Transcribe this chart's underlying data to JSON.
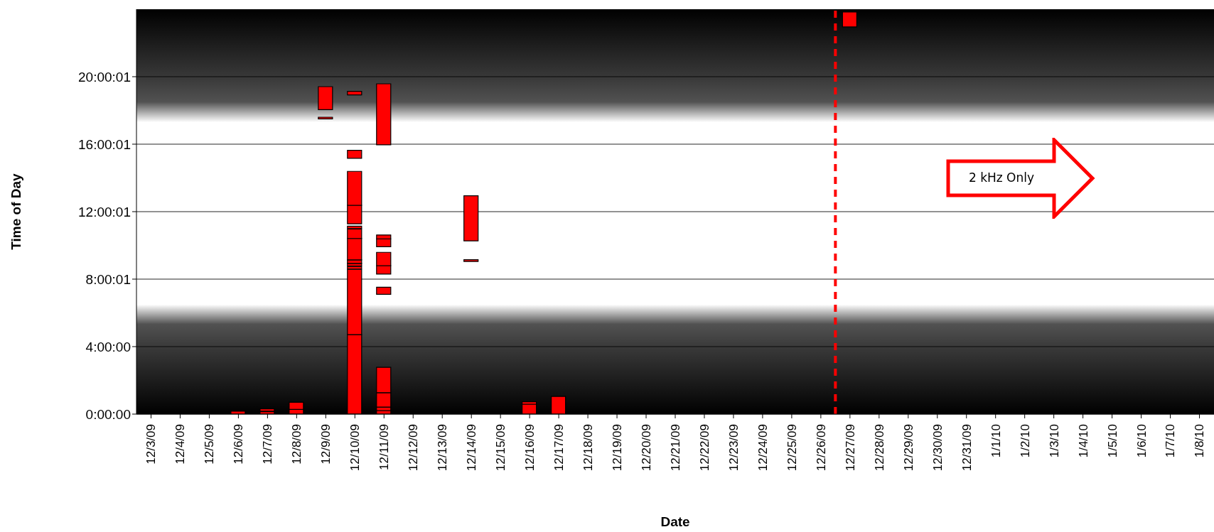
{
  "chart_data": {
    "type": "bar",
    "xlabel": "Date",
    "ylabel": "Time of Day",
    "categories": [
      "12/3/09",
      "12/4/09",
      "12/5/09",
      "12/6/09",
      "12/7/09",
      "12/8/09",
      "12/9/09",
      "12/10/09",
      "12/11/09",
      "12/12/09",
      "12/13/09",
      "12/14/09",
      "12/15/09",
      "12/16/09",
      "12/17/09",
      "12/18/09",
      "12/19/09",
      "12/20/09",
      "12/21/09",
      "12/22/09",
      "12/23/09",
      "12/24/09",
      "12/25/09",
      "12/26/09",
      "12/27/09",
      "12/28/09",
      "12/29/09",
      "12/30/09",
      "12/31/09",
      "1/1/10",
      "1/2/10",
      "1/3/10",
      "1/4/10",
      "1/5/10",
      "1/6/10",
      "1/7/10",
      "1/8/10"
    ],
    "series": [
      {
        "color": "#ff0000",
        "base": [
          null,
          null,
          null,
          0,
          0,
          0,
          17.5,
          0,
          0,
          null,
          null,
          9.05,
          null,
          0,
          0,
          null,
          null,
          null,
          null,
          null,
          null,
          null,
          null,
          null,
          22.95,
          null,
          null,
          null,
          null,
          null,
          null,
          null,
          null,
          null,
          null,
          null,
          null
        ],
        "values": [
          null,
          null,
          null,
          0.17,
          0.14,
          0.28,
          0.1,
          4.71,
          0.21,
          null,
          null,
          0.1,
          null,
          0.59,
          1.05,
          null,
          null,
          null,
          null,
          null,
          null,
          null,
          null,
          null,
          0.89,
          null,
          null,
          null,
          null,
          null,
          null,
          null,
          null,
          null,
          null,
          null,
          null
        ]
      },
      {
        "color": "#ff0000",
        "base": [
          null,
          null,
          null,
          null,
          0.17,
          0.28,
          18.05,
          4.71,
          0.21,
          null,
          null,
          10.27,
          null,
          0.59,
          null,
          null,
          null,
          null,
          null,
          null,
          null,
          null,
          null,
          null,
          null,
          null,
          null,
          null,
          null,
          null,
          null,
          null,
          null,
          null,
          null,
          null,
          null
        ],
        "values": [
          null,
          null,
          null,
          null,
          0.14,
          0.42,
          1.36,
          3.87,
          0.21,
          null,
          null,
          2.67,
          null,
          0.14,
          null,
          null,
          null,
          null,
          null,
          null,
          null,
          null,
          null,
          null,
          null,
          null,
          null,
          null,
          null,
          null,
          null,
          null,
          null,
          null,
          null,
          null,
          null
        ]
      },
      {
        "color": "#ff0000",
        "base": [
          null,
          null,
          null,
          null,
          null,
          null,
          null,
          8.6,
          0.42,
          null,
          null,
          null,
          null,
          null,
          null,
          null,
          null,
          null,
          null,
          null,
          null,
          null,
          null,
          null,
          null,
          null,
          null,
          null,
          null,
          null,
          null,
          null,
          null,
          null,
          null,
          null,
          null
        ],
        "values": [
          null,
          null,
          null,
          null,
          null,
          null,
          null,
          0.15,
          0.85,
          null,
          null,
          null,
          null,
          null,
          null,
          null,
          null,
          null,
          null,
          null,
          null,
          null,
          null,
          null,
          null,
          null,
          null,
          null,
          null,
          null,
          null,
          null,
          null,
          null,
          null,
          null,
          null
        ]
      },
      {
        "color": "#ff0000",
        "base": [
          null,
          null,
          null,
          null,
          null,
          null,
          null,
          8.78,
          1.27,
          null,
          null,
          null,
          null,
          null,
          null,
          null,
          null,
          null,
          null,
          null,
          null,
          null,
          null,
          null,
          null,
          null,
          null,
          null,
          null,
          null,
          null,
          null,
          null,
          null,
          null,
          null,
          null
        ],
        "values": [
          null,
          null,
          null,
          null,
          null,
          null,
          null,
          0.15,
          1.5,
          null,
          null,
          null,
          null,
          null,
          null,
          null,
          null,
          null,
          null,
          null,
          null,
          null,
          null,
          null,
          null,
          null,
          null,
          null,
          null,
          null,
          null,
          null,
          null,
          null,
          null,
          null,
          null
        ]
      },
      {
        "color": "#ff0000",
        "base": [
          null,
          null,
          null,
          null,
          null,
          null,
          null,
          8.93,
          7.1,
          null,
          null,
          null,
          null,
          null,
          null,
          null,
          null,
          null,
          null,
          null,
          null,
          null,
          null,
          null,
          null,
          null,
          null,
          null,
          null,
          null,
          null,
          null,
          null,
          null,
          null,
          null,
          null
        ],
        "values": [
          null,
          null,
          null,
          null,
          null,
          null,
          null,
          0.21,
          0.42,
          null,
          null,
          null,
          null,
          null,
          null,
          null,
          null,
          null,
          null,
          null,
          null,
          null,
          null,
          null,
          null,
          null,
          null,
          null,
          null,
          null,
          null,
          null,
          null,
          null,
          null,
          null,
          null
        ]
      },
      {
        "color": "#ff0000",
        "base": [
          null,
          null,
          null,
          null,
          null,
          null,
          null,
          9.14,
          8.3,
          null,
          null,
          null,
          null,
          null,
          null,
          null,
          null,
          null,
          null,
          null,
          null,
          null,
          null,
          null,
          null,
          null,
          null,
          null,
          null,
          null,
          null,
          null,
          null,
          null,
          null,
          null,
          null
        ],
        "values": [
          null,
          null,
          null,
          null,
          null,
          null,
          null,
          1.27,
          0.5,
          null,
          null,
          null,
          null,
          null,
          null,
          null,
          null,
          null,
          null,
          null,
          null,
          null,
          null,
          null,
          null,
          null,
          null,
          null,
          null,
          null,
          null,
          null,
          null,
          null,
          null,
          null,
          null
        ]
      },
      {
        "color": "#ff0000",
        "base": [
          null,
          null,
          null,
          null,
          null,
          null,
          null,
          10.41,
          8.8,
          null,
          null,
          null,
          null,
          null,
          null,
          null,
          null,
          null,
          null,
          null,
          null,
          null,
          null,
          null,
          null,
          null,
          null,
          null,
          null,
          null,
          null,
          null,
          null,
          null,
          null,
          null,
          null
        ],
        "values": [
          null,
          null,
          null,
          null,
          null,
          null,
          null,
          0.56,
          0.79,
          null,
          null,
          null,
          null,
          null,
          null,
          null,
          null,
          null,
          null,
          null,
          null,
          null,
          null,
          null,
          null,
          null,
          null,
          null,
          null,
          null,
          null,
          null,
          null,
          null,
          null,
          null,
          null
        ]
      },
      {
        "color": "#ff0000",
        "base": [
          null,
          null,
          null,
          null,
          null,
          null,
          null,
          11.0,
          9.92,
          null,
          null,
          null,
          null,
          null,
          null,
          null,
          null,
          null,
          null,
          null,
          null,
          null,
          null,
          null,
          null,
          null,
          null,
          null,
          null,
          null,
          null,
          null,
          null,
          null,
          null,
          null,
          null
        ],
        "values": [
          null,
          null,
          null,
          null,
          null,
          null,
          null,
          0.14,
          0.47,
          null,
          null,
          null,
          null,
          null,
          null,
          null,
          null,
          null,
          null,
          null,
          null,
          null,
          null,
          null,
          null,
          null,
          null,
          null,
          null,
          null,
          null,
          null,
          null,
          null,
          null,
          null,
          null
        ]
      },
      {
        "color": "#ff0000",
        "base": [
          null,
          null,
          null,
          null,
          null,
          null,
          null,
          11.28,
          10.39,
          null,
          null,
          null,
          null,
          null,
          null,
          null,
          null,
          null,
          null,
          null,
          null,
          null,
          null,
          null,
          null,
          null,
          null,
          null,
          null,
          null,
          null,
          null,
          null,
          null,
          null,
          null,
          null
        ],
        "values": [
          null,
          null,
          null,
          null,
          null,
          null,
          null,
          1.1,
          0.23,
          null,
          null,
          null,
          null,
          null,
          null,
          null,
          null,
          null,
          null,
          null,
          null,
          null,
          null,
          null,
          null,
          null,
          null,
          null,
          null,
          null,
          null,
          null,
          null,
          null,
          null,
          null,
          null
        ]
      },
      {
        "color": "#ff0000",
        "base": [
          null,
          null,
          null,
          null,
          null,
          null,
          null,
          12.38,
          15.96,
          null,
          null,
          null,
          null,
          null,
          null,
          null,
          null,
          null,
          null,
          null,
          null,
          null,
          null,
          null,
          null,
          null,
          null,
          null,
          null,
          null,
          null,
          null,
          null,
          null,
          null,
          null,
          null
        ],
        "values": [
          null,
          null,
          null,
          null,
          null,
          null,
          null,
          2.01,
          3.62,
          null,
          null,
          null,
          null,
          null,
          null,
          null,
          null,
          null,
          null,
          null,
          null,
          null,
          null,
          null,
          null,
          null,
          null,
          null,
          null,
          null,
          null,
          null,
          null,
          null,
          null,
          null,
          null
        ]
      },
      {
        "color": "#ff0000",
        "base": [
          null,
          null,
          null,
          null,
          null,
          null,
          null,
          15.16,
          null,
          null,
          null,
          null,
          null,
          null,
          null,
          null,
          null,
          null,
          null,
          null,
          null,
          null,
          null,
          null,
          null,
          null,
          null,
          null,
          null,
          null,
          null,
          null,
          null,
          null,
          null,
          null,
          null
        ],
        "values": [
          null,
          null,
          null,
          null,
          null,
          null,
          null,
          0.48,
          null,
          null,
          null,
          null,
          null,
          null,
          null,
          null,
          null,
          null,
          null,
          null,
          null,
          null,
          null,
          null,
          null,
          null,
          null,
          null,
          null,
          null,
          null,
          null,
          null,
          null,
          null,
          null,
          null
        ]
      },
      {
        "color": "#ff0000",
        "base": [
          null,
          null,
          null,
          null,
          null,
          null,
          null,
          18.92,
          null,
          null,
          null,
          null,
          null,
          null,
          null,
          null,
          null,
          null,
          null,
          null,
          null,
          null,
          null,
          null,
          null,
          null,
          null,
          null,
          null,
          null,
          null,
          null,
          null,
          null,
          null,
          null,
          null
        ],
        "values": [
          null,
          null,
          null,
          null,
          null,
          null,
          null,
          0.21,
          null,
          null,
          null,
          null,
          null,
          null,
          null,
          null,
          null,
          null,
          null,
          null,
          null,
          null,
          null,
          null,
          null,
          null,
          null,
          null,
          null,
          null,
          null,
          null,
          null,
          null,
          null,
          null,
          null
        ]
      }
    ],
    "ylim": [
      0,
      24
    ],
    "yticks": [
      {
        "value": 0,
        "label": "0:00:00"
      },
      {
        "value": 4,
        "label": "4:00:00"
      },
      {
        "value": 8.0003,
        "label": "8:00:01"
      },
      {
        "value": 12.0003,
        "label": "12:00:01"
      },
      {
        "value": 16.0003,
        "label": "16:00:01"
      },
      {
        "value": 20.0003,
        "label": "20:00:01"
      }
    ],
    "grid": "y",
    "ref_lines": [
      {
        "axis": "x",
        "value": "12/27/09",
        "color": "#ff0000",
        "line_style": "dashed"
      }
    ],
    "bands": [
      {
        "axis": "y",
        "from": 0,
        "to": 6.5,
        "color": "#000000"
      },
      {
        "axis": "y",
        "from": 17.3,
        "to": 24,
        "color": "#000000"
      }
    ],
    "annotations": [
      "2 kHz Only"
    ]
  }
}
